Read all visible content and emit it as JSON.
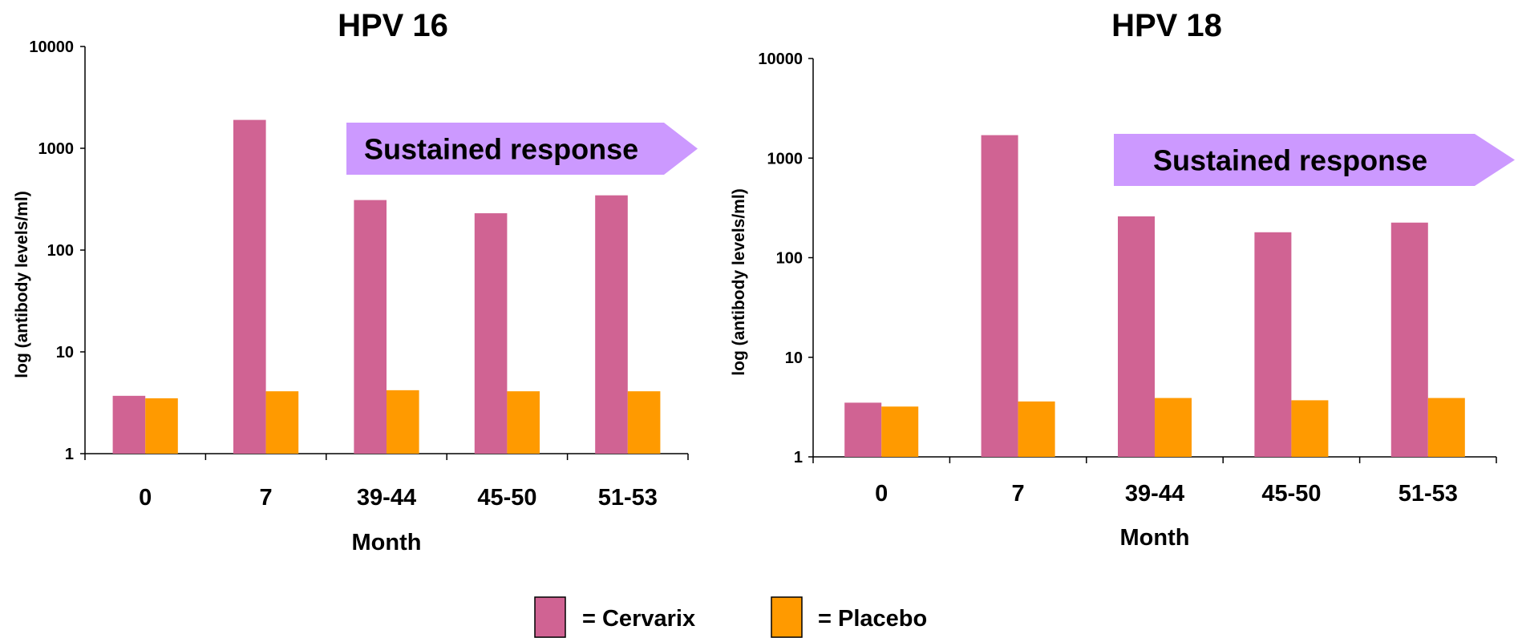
{
  "chart_data": [
    {
      "type": "bar",
      "title": "HPV 16",
      "xlabel": "Month",
      "ylabel": "log (antibody levels/ml)",
      "yscale": "log",
      "ylim": [
        1,
        10000
      ],
      "yticks": [
        "1",
        "10",
        "100",
        "1000",
        "10000"
      ],
      "categories": [
        "0",
        "7",
        "39-44",
        "45-50",
        "51-53"
      ],
      "series": [
        {
          "name": "Cervarix",
          "color": "#D06393",
          "values": [
            3.7,
            1900,
            310,
            230,
            345
          ]
        },
        {
          "name": "Placebo",
          "color": "#FF9A00",
          "values": [
            3.5,
            4.1,
            4.2,
            4.1,
            4.1
          ]
        }
      ],
      "annotation": "Sustained response"
    },
    {
      "type": "bar",
      "title": "HPV 18",
      "xlabel": "Month",
      "ylabel": "log (antibody levels/ml)",
      "yscale": "log",
      "ylim": [
        1,
        10000
      ],
      "yticks": [
        "1",
        "10",
        "100",
        "1000",
        "10000"
      ],
      "categories": [
        "0",
        "7",
        "39-44",
        "45-50",
        "51-53"
      ],
      "series": [
        {
          "name": "Cervarix",
          "color": "#D06393",
          "values": [
            3.5,
            1700,
            260,
            180,
            225
          ]
        },
        {
          "name": "Placebo",
          "color": "#FF9A00",
          "values": [
            3.2,
            3.6,
            3.9,
            3.7,
            3.9
          ]
        }
      ],
      "annotation": "Sustained response"
    }
  ],
  "legend": {
    "items": [
      {
        "label": "= Cervarix",
        "color": "#D06393"
      },
      {
        "label": "= Placebo",
        "color": "#FF9A00"
      }
    ]
  },
  "colors": {
    "arrow": "#CC99FF",
    "axis": "#000000"
  }
}
